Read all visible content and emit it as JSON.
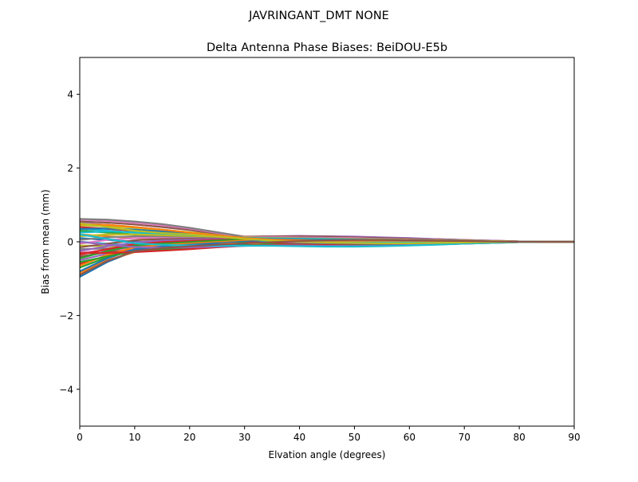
{
  "figure": {
    "suptitle": "JAVRINGANT_DMT  NONE"
  },
  "chart_data": {
    "type": "line",
    "title": "Delta Antenna Phase Biases: BeiDOU-E5b",
    "xlabel": "Elvation angle (degrees)",
    "ylabel": "Bias from mean (mm)",
    "xlim": [
      0,
      90
    ],
    "ylim": [
      -5,
      5
    ],
    "xticks": [
      0,
      10,
      20,
      30,
      40,
      50,
      60,
      70,
      80,
      90
    ],
    "yticks": [
      -4,
      -2,
      0,
      2,
      4
    ],
    "ytick_labels": [
      "−4",
      "−2",
      "0",
      "2",
      "4"
    ],
    "grid": false,
    "legend": "none",
    "x": [
      0,
      5,
      10,
      15,
      20,
      25,
      30,
      35,
      40,
      45,
      50,
      55,
      60,
      65,
      70,
      75,
      80,
      85,
      90
    ],
    "series": [
      {
        "color": "#1f77b4",
        "values": [
          -0.95,
          -0.55,
          -0.25,
          -0.18,
          -0.12,
          -0.08,
          -0.05,
          -0.04,
          -0.05,
          -0.06,
          -0.06,
          -0.05,
          -0.04,
          -0.03,
          -0.02,
          -0.01,
          0,
          0,
          0
        ]
      },
      {
        "color": "#ff7f0e",
        "values": [
          -0.85,
          -0.5,
          -0.28,
          -0.2,
          -0.14,
          -0.1,
          -0.07,
          -0.05,
          -0.04,
          -0.04,
          -0.04,
          -0.03,
          -0.03,
          -0.02,
          -0.01,
          -0.01,
          0,
          0,
          0
        ]
      },
      {
        "color": "#2ca02c",
        "values": [
          -0.7,
          -0.42,
          -0.22,
          -0.16,
          -0.11,
          -0.08,
          -0.06,
          -0.04,
          -0.03,
          -0.03,
          -0.03,
          -0.02,
          -0.02,
          -0.02,
          -0.01,
          0,
          0,
          0,
          0
        ]
      },
      {
        "color": "#d62728",
        "values": [
          -0.6,
          -0.38,
          -0.24,
          -0.18,
          -0.13,
          -0.1,
          -0.07,
          -0.05,
          -0.03,
          -0.02,
          -0.02,
          -0.02,
          -0.01,
          -0.01,
          -0.01,
          0,
          0,
          0,
          0
        ]
      },
      {
        "color": "#9467bd",
        "values": [
          -0.5,
          -0.32,
          -0.2,
          -0.15,
          -0.1,
          -0.08,
          -0.06,
          -0.04,
          -0.03,
          -0.02,
          -0.02,
          -0.01,
          -0.01,
          -0.01,
          0,
          0,
          0,
          0,
          0
        ]
      },
      {
        "color": "#8c564b",
        "values": [
          -0.4,
          -0.28,
          -0.2,
          -0.14,
          -0.1,
          -0.08,
          -0.06,
          -0.05,
          -0.04,
          -0.03,
          -0.02,
          -0.02,
          -0.01,
          -0.01,
          0,
          0,
          0,
          0,
          0
        ]
      },
      {
        "color": "#e377c2",
        "values": [
          -0.3,
          -0.22,
          -0.18,
          -0.14,
          -0.11,
          -0.09,
          -0.07,
          -0.05,
          -0.04,
          -0.03,
          -0.02,
          -0.02,
          -0.01,
          -0.01,
          0,
          0,
          0,
          0,
          0
        ]
      },
      {
        "color": "#7f7f7f",
        "values": [
          -0.2,
          -0.18,
          -0.15,
          -0.12,
          -0.1,
          -0.08,
          -0.06,
          -0.04,
          -0.03,
          -0.02,
          -0.02,
          -0.01,
          -0.01,
          0,
          0,
          0,
          0,
          0,
          0
        ]
      },
      {
        "color": "#bcbd22",
        "values": [
          -0.1,
          -0.12,
          -0.13,
          -0.12,
          -0.1,
          -0.09,
          -0.07,
          -0.05,
          -0.03,
          -0.02,
          -0.01,
          -0.01,
          -0.01,
          0,
          0,
          0,
          0,
          0,
          0
        ]
      },
      {
        "color": "#17becf",
        "values": [
          0.0,
          -0.05,
          -0.1,
          -0.1,
          -0.09,
          -0.08,
          -0.07,
          -0.06,
          -0.05,
          -0.04,
          -0.03,
          -0.02,
          -0.01,
          -0.01,
          0,
          0,
          0,
          0,
          0
        ]
      },
      {
        "color": "#1f77b4",
        "values": [
          0.1,
          0.05,
          0.0,
          -0.03,
          -0.05,
          -0.06,
          -0.06,
          -0.05,
          -0.05,
          -0.04,
          -0.03,
          -0.02,
          -0.02,
          -0.01,
          -0.01,
          0,
          0,
          0,
          0
        ]
      },
      {
        "color": "#ff7f0e",
        "values": [
          0.2,
          0.15,
          0.1,
          0.06,
          0.02,
          -0.02,
          -0.04,
          -0.05,
          -0.05,
          -0.05,
          -0.04,
          -0.03,
          -0.02,
          -0.01,
          -0.01,
          0,
          0,
          0,
          0
        ]
      },
      {
        "color": "#2ca02c",
        "values": [
          0.3,
          0.25,
          0.2,
          0.15,
          0.1,
          0.04,
          -0.02,
          -0.04,
          -0.05,
          -0.05,
          -0.04,
          -0.03,
          -0.02,
          -0.02,
          -0.01,
          0,
          0,
          0,
          0
        ]
      },
      {
        "color": "#d62728",
        "values": [
          0.4,
          0.35,
          0.3,
          0.24,
          0.18,
          0.1,
          0.02,
          -0.02,
          -0.04,
          -0.05,
          -0.05,
          -0.04,
          -0.03,
          -0.02,
          -0.01,
          -0.01,
          0,
          0,
          0
        ]
      },
      {
        "color": "#9467bd",
        "values": [
          0.5,
          0.46,
          0.4,
          0.33,
          0.25,
          0.15,
          0.06,
          0.01,
          -0.02,
          -0.04,
          -0.04,
          -0.04,
          -0.03,
          -0.02,
          -0.01,
          -0.01,
          0,
          0,
          0
        ]
      },
      {
        "color": "#8c564b",
        "values": [
          0.55,
          0.52,
          0.47,
          0.4,
          0.32,
          0.2,
          0.1,
          0.04,
          0.0,
          -0.02,
          -0.03,
          -0.03,
          -0.02,
          -0.02,
          -0.01,
          0,
          0,
          0,
          0
        ]
      },
      {
        "color": "#e377c2",
        "values": [
          0.6,
          0.57,
          0.52,
          0.45,
          0.36,
          0.24,
          0.12,
          0.05,
          0.01,
          -0.01,
          -0.02,
          -0.02,
          -0.02,
          -0.01,
          -0.01,
          0,
          0,
          0,
          0
        ]
      },
      {
        "color": "#7f7f7f",
        "values": [
          0.62,
          0.6,
          0.55,
          0.48,
          0.38,
          0.26,
          0.14,
          0.06,
          0.02,
          0.0,
          -0.01,
          -0.02,
          -0.02,
          -0.01,
          -0.01,
          0,
          0,
          0,
          0
        ]
      },
      {
        "color": "#bcbd22",
        "values": [
          0.45,
          0.42,
          0.38,
          0.32,
          0.26,
          0.18,
          0.1,
          0.06,
          0.03,
          0.02,
          0.01,
          0.0,
          0.0,
          0.0,
          0,
          0,
          0,
          0,
          0
        ]
      },
      {
        "color": "#17becf",
        "values": [
          0.35,
          0.3,
          0.25,
          0.2,
          0.14,
          0.08,
          0.04,
          0.02,
          0.01,
          0.0,
          -0.01,
          -0.01,
          -0.01,
          0,
          0,
          0,
          0,
          0,
          0
        ]
      },
      {
        "color": "#1f77b4",
        "values": [
          -0.8,
          -0.45,
          -0.2,
          -0.12,
          -0.06,
          -0.02,
          0.02,
          0.05,
          0.07,
          0.07,
          0.06,
          0.05,
          0.04,
          0.03,
          0.02,
          0.01,
          0.01,
          0,
          0
        ]
      },
      {
        "color": "#ff7f0e",
        "values": [
          -0.65,
          -0.35,
          -0.15,
          -0.08,
          -0.03,
          0.01,
          0.05,
          0.08,
          0.1,
          0.1,
          0.09,
          0.08,
          0.06,
          0.05,
          0.03,
          0.02,
          0.01,
          0,
          0
        ]
      },
      {
        "color": "#2ca02c",
        "values": [
          -0.45,
          -0.25,
          -0.1,
          -0.04,
          0.0,
          0.04,
          0.08,
          0.11,
          0.12,
          0.12,
          0.11,
          0.1,
          0.08,
          0.06,
          0.04,
          0.02,
          0.01,
          0,
          0
        ]
      },
      {
        "color": "#d62728",
        "values": [
          -0.35,
          -0.2,
          -0.06,
          0.0,
          0.04,
          0.08,
          0.12,
          0.14,
          0.15,
          0.14,
          0.13,
          0.11,
          0.09,
          0.07,
          0.05,
          0.03,
          0.01,
          0,
          0
        ]
      },
      {
        "color": "#9467bd",
        "values": [
          -0.25,
          -0.12,
          -0.02,
          0.04,
          0.07,
          0.1,
          0.13,
          0.15,
          0.16,
          0.15,
          0.14,
          0.12,
          0.1,
          0.07,
          0.05,
          0.03,
          0.01,
          0,
          0
        ]
      },
      {
        "color": "#8c564b",
        "values": [
          -0.15,
          -0.05,
          0.04,
          0.08,
          0.1,
          0.12,
          0.14,
          0.15,
          0.15,
          0.14,
          0.12,
          0.1,
          0.08,
          0.06,
          0.04,
          0.02,
          0.01,
          0,
          0
        ]
      },
      {
        "color": "#e377c2",
        "values": [
          -0.05,
          0.05,
          0.1,
          0.12,
          0.13,
          0.13,
          0.13,
          0.13,
          0.12,
          0.11,
          0.1,
          0.08,
          0.06,
          0.05,
          0.03,
          0.02,
          0.01,
          0,
          0
        ]
      },
      {
        "color": "#7f7f7f",
        "values": [
          0.05,
          0.12,
          0.15,
          0.15,
          0.14,
          0.13,
          0.12,
          0.11,
          0.1,
          0.09,
          0.08,
          0.07,
          0.05,
          0.04,
          0.03,
          0.02,
          0.01,
          0,
          0
        ]
      },
      {
        "color": "#bcbd22",
        "values": [
          0.15,
          0.2,
          0.2,
          0.18,
          0.16,
          0.14,
          0.12,
          0.1,
          0.09,
          0.08,
          0.07,
          0.06,
          0.05,
          0.04,
          0.03,
          0.02,
          0.01,
          0,
          0
        ]
      },
      {
        "color": "#17becf",
        "values": [
          0.25,
          0.28,
          0.26,
          0.23,
          0.19,
          0.15,
          0.11,
          0.09,
          0.08,
          0.07,
          0.06,
          0.05,
          0.04,
          0.03,
          0.02,
          0.01,
          0.01,
          0,
          0
        ]
      },
      {
        "color": "#1f77b4",
        "values": [
          0.35,
          0.36,
          0.33,
          0.28,
          0.22,
          0.16,
          0.1,
          0.07,
          0.06,
          0.05,
          0.05,
          0.04,
          0.04,
          0.03,
          0.02,
          0.01,
          0.01,
          0,
          0
        ]
      },
      {
        "color": "#ff7f0e",
        "values": [
          0.48,
          0.46,
          0.4,
          0.33,
          0.25,
          0.17,
          0.1,
          0.06,
          0.04,
          0.03,
          0.03,
          0.03,
          0.03,
          0.02,
          0.02,
          0.01,
          0,
          0,
          0
        ]
      },
      {
        "color": "#2ca02c",
        "values": [
          -0.55,
          -0.4,
          -0.26,
          -0.2,
          -0.16,
          -0.13,
          -0.1,
          -0.08,
          -0.07,
          -0.08,
          -0.09,
          -0.09,
          -0.08,
          -0.06,
          -0.04,
          -0.02,
          -0.01,
          0,
          0
        ]
      },
      {
        "color": "#d62728",
        "values": [
          -0.3,
          -0.3,
          -0.28,
          -0.24,
          -0.2,
          -0.15,
          -0.11,
          -0.09,
          -0.08,
          -0.09,
          -0.1,
          -0.1,
          -0.09,
          -0.07,
          -0.05,
          -0.03,
          -0.01,
          0,
          0
        ]
      },
      {
        "color": "#9467bd",
        "values": [
          0.0,
          -0.08,
          -0.14,
          -0.16,
          -0.15,
          -0.13,
          -0.11,
          -0.1,
          -0.1,
          -0.11,
          -0.11,
          -0.1,
          -0.09,
          -0.07,
          -0.05,
          -0.03,
          -0.01,
          0,
          0
        ]
      },
      {
        "color": "#17becf",
        "values": [
          0.2,
          0.08,
          -0.04,
          -0.08,
          -0.1,
          -0.11,
          -0.11,
          -0.11,
          -0.12,
          -0.13,
          -0.13,
          -0.12,
          -0.1,
          -0.08,
          -0.05,
          -0.03,
          -0.01,
          0,
          0
        ]
      },
      {
        "color": "#bcbd22",
        "values": [
          0.5,
          0.4,
          0.3,
          0.24,
          0.2,
          0.14,
          0.08,
          0.03,
          0.0,
          -0.02,
          -0.03,
          -0.04,
          -0.04,
          -0.03,
          -0.02,
          -0.01,
          0,
          0,
          0
        ]
      },
      {
        "color": "#8c564b",
        "values": [
          -0.9,
          -0.52,
          -0.26,
          -0.17,
          -0.12,
          -0.08,
          -0.04,
          -0.01,
          0.02,
          0.04,
          0.05,
          0.05,
          0.04,
          0.03,
          0.02,
          0.01,
          0,
          0,
          0
        ]
      }
    ]
  }
}
